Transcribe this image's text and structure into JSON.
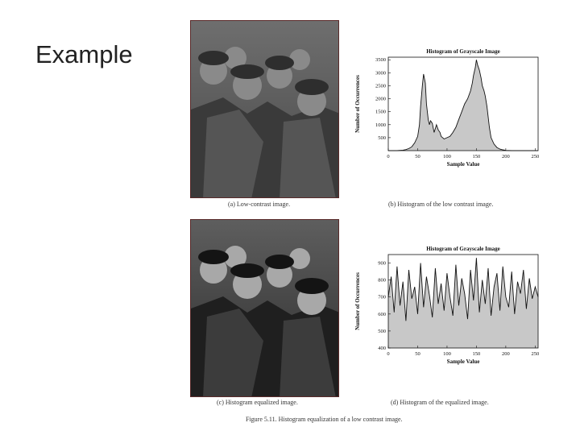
{
  "slide": {
    "title": "Example"
  },
  "captions": {
    "a": "(a) Low-contrast image.",
    "b": "(b) Histogram of the low contrast image.",
    "c": "(c) Histogram equalized image.",
    "d": "(d) Histogram of the equalized image.",
    "figure": "Figure 5.11. Histogram equalization of a low contrast image."
  },
  "colors": {
    "fill": "#c8c8c8",
    "line": "#111111",
    "photo_border": "#5a2a2a"
  },
  "chart_data": [
    {
      "type": "area",
      "title": "Histogram of Grayscale Image",
      "xlabel": "Sample Value",
      "ylabel": "Number of Occurrences",
      "xlim": [
        0,
        255
      ],
      "ylim": [
        0,
        3600
      ],
      "xticks": [
        0,
        50,
        100,
        150,
        200,
        250
      ],
      "yticks": [
        500,
        1000,
        1500,
        2000,
        2500,
        3000,
        3500
      ],
      "grid": false,
      "x": [
        0,
        5,
        10,
        15,
        20,
        25,
        30,
        35,
        40,
        45,
        50,
        53,
        55,
        58,
        60,
        63,
        65,
        68,
        70,
        72,
        75,
        78,
        80,
        82,
        85,
        88,
        90,
        95,
        100,
        105,
        110,
        115,
        120,
        125,
        130,
        135,
        140,
        143,
        145,
        148,
        150,
        152,
        155,
        158,
        160,
        163,
        165,
        168,
        170,
        172,
        175,
        180,
        185,
        190,
        195,
        200,
        205,
        210,
        220,
        230,
        240,
        255
      ],
      "y": [
        0,
        0,
        0,
        0,
        10,
        20,
        40,
        80,
        150,
        300,
        550,
        1000,
        1700,
        2500,
        2950,
        2600,
        1800,
        1200,
        1000,
        1150,
        1050,
        700,
        850,
        1000,
        800,
        700,
        550,
        450,
        500,
        550,
        700,
        900,
        1200,
        1500,
        1800,
        2000,
        2300,
        2600,
        2900,
        3200,
        3500,
        3300,
        3100,
        2800,
        2500,
        2300,
        2100,
        1700,
        1300,
        900,
        500,
        250,
        120,
        60,
        30,
        10,
        5,
        0,
        0,
        0,
        0,
        0
      ]
    },
    {
      "type": "area",
      "title": "Histogram of Grayscale Image",
      "xlabel": "Sample Value",
      "ylabel": "Number of Occurrences",
      "xlim": [
        0,
        255
      ],
      "ylim": [
        400,
        950
      ],
      "xticks": [
        0,
        50,
        100,
        150,
        200,
        250
      ],
      "yticks": [
        400,
        500,
        600,
        700,
        800,
        900
      ],
      "grid": false,
      "x": [
        0,
        5,
        10,
        15,
        20,
        25,
        30,
        35,
        40,
        45,
        50,
        55,
        60,
        65,
        70,
        75,
        80,
        85,
        90,
        95,
        100,
        105,
        110,
        115,
        120,
        125,
        130,
        135,
        140,
        145,
        150,
        155,
        160,
        165,
        170,
        175,
        180,
        185,
        190,
        195,
        200,
        205,
        210,
        215,
        220,
        225,
        230,
        235,
        240,
        245,
        250,
        255
      ],
      "y": [
        700,
        820,
        610,
        880,
        650,
        790,
        560,
        860,
        690,
        760,
        600,
        900,
        640,
        820,
        710,
        580,
        870,
        660,
        780,
        620,
        840,
        700,
        590,
        890,
        650,
        810,
        720,
        570,
        860,
        680,
        930,
        610,
        800,
        660,
        870,
        590,
        760,
        840,
        620,
        880,
        700,
        640,
        850,
        600,
        790,
        720,
        860,
        630,
        810,
        690,
        760,
        700
      ]
    }
  ]
}
